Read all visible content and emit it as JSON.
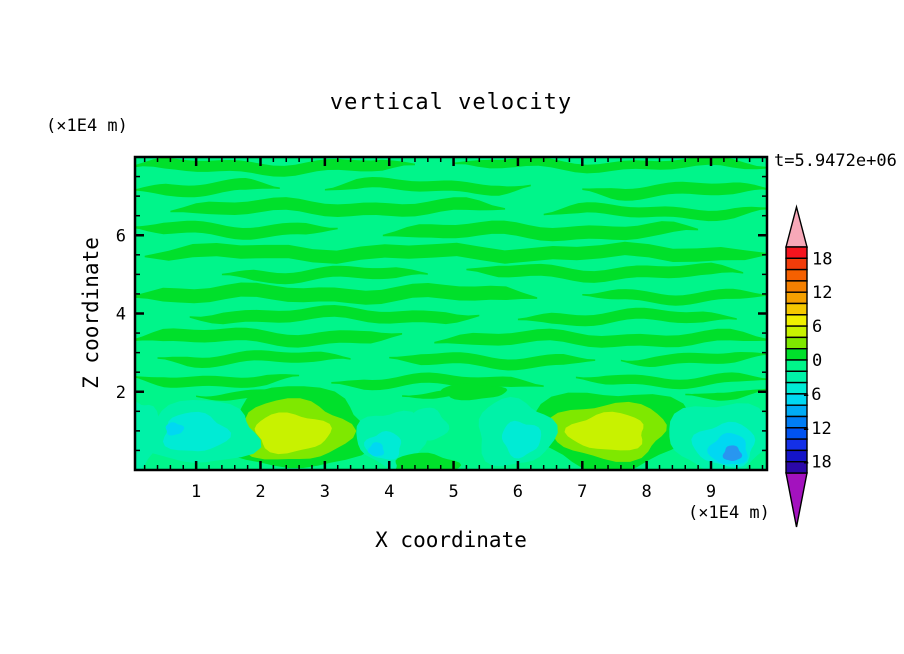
{
  "header": {
    "title": "vertical velocity",
    "timestamp": "t=5.9472e+06"
  },
  "axes": {
    "x": {
      "label": "X coordinate",
      "unit": "(×1E4 m)"
    },
    "z": {
      "label": "Z coordinate",
      "unit": "(×1E4 m)"
    }
  },
  "colorbar": {
    "labels": [
      "18",
      "12",
      "6",
      "0",
      "-6",
      "-12",
      "-18"
    ]
  },
  "chart_data": {
    "type": "heatmap",
    "subtype": "filled-contour",
    "title": "vertical velocity",
    "xlabel": "X coordinate",
    "zlabel": "Z coordinate",
    "x_unit": "(×1E4 m)",
    "z_unit": "(×1E4 m)",
    "time_annotation": "t=5.9472e+06",
    "x_range": [
      0.05,
      9.87
    ],
    "z_range": [
      0,
      8
    ],
    "x_ticks_major": [
      1,
      2,
      3,
      4,
      5,
      6,
      7,
      8,
      9
    ],
    "x_tick_minor_step": 0.2,
    "z_ticks_major": [
      2,
      4,
      6
    ],
    "z_tick_minor_step": 0.5,
    "grid": false,
    "colorbar": {
      "min": -20,
      "max": 20,
      "step": 2,
      "label_values": [
        18,
        12,
        6,
        0,
        -6,
        -12,
        -18
      ],
      "cell_colors_top_to_bottom": [
        "#F5141E",
        "#F23C0A",
        "#F56000",
        "#F58000",
        "#F5A000",
        "#F5C800",
        "#F0F000",
        "#C8F200",
        "#7FE800",
        "#00E02B",
        "#00F58A",
        "#00F2A8",
        "#00EBD5",
        "#00D8F2",
        "#00ABF5",
        "#007DF5",
        "#0053F0",
        "#1430E8",
        "#1414C8",
        "#2B08A8"
      ],
      "over_color": "#F7A8B8",
      "under_color": "#A312BE",
      "legend_position": "right"
    },
    "field": {
      "background_value_band": "-2..0",
      "background_color": "#00F58A",
      "streak_value_band": "0..2",
      "streak_color": "#00E02B",
      "streaks": [
        {
          "x0": 0.0,
          "x1": 4.4,
          "z": 7.75,
          "h": 0.28
        },
        {
          "x0": 5.0,
          "x1": 9.9,
          "z": 7.8,
          "h": 0.22
        },
        {
          "x0": 0.0,
          "x1": 2.3,
          "z": 7.2,
          "h": 0.3
        },
        {
          "x0": 3.0,
          "x1": 6.2,
          "z": 7.25,
          "h": 0.26
        },
        {
          "x0": 7.0,
          "x1": 9.9,
          "z": 7.15,
          "h": 0.3
        },
        {
          "x0": 0.6,
          "x1": 5.8,
          "z": 6.7,
          "h": 0.32
        },
        {
          "x0": 6.4,
          "x1": 9.9,
          "z": 6.6,
          "h": 0.26
        },
        {
          "x0": 0.0,
          "x1": 3.2,
          "z": 6.15,
          "h": 0.3
        },
        {
          "x0": 3.9,
          "x1": 8.8,
          "z": 6.1,
          "h": 0.34
        },
        {
          "x0": 0.2,
          "x1": 9.9,
          "z": 5.55,
          "h": 0.34
        },
        {
          "x0": 1.4,
          "x1": 4.6,
          "z": 5.0,
          "h": 0.28
        },
        {
          "x0": 5.2,
          "x1": 9.5,
          "z": 5.05,
          "h": 0.3
        },
        {
          "x0": 0.0,
          "x1": 6.3,
          "z": 4.5,
          "h": 0.36
        },
        {
          "x0": 7.0,
          "x1": 9.9,
          "z": 4.45,
          "h": 0.26
        },
        {
          "x0": 0.9,
          "x1": 5.4,
          "z": 3.95,
          "h": 0.3
        },
        {
          "x0": 6.0,
          "x1": 9.4,
          "z": 3.9,
          "h": 0.28
        },
        {
          "x0": 0.0,
          "x1": 4.2,
          "z": 3.4,
          "h": 0.32
        },
        {
          "x0": 4.7,
          "x1": 9.9,
          "z": 3.35,
          "h": 0.3
        },
        {
          "x0": 0.4,
          "x1": 3.4,
          "z": 2.85,
          "h": 0.26
        },
        {
          "x0": 4.0,
          "x1": 7.2,
          "z": 2.8,
          "h": 0.28
        },
        {
          "x0": 7.6,
          "x1": 9.9,
          "z": 2.85,
          "h": 0.26
        },
        {
          "x0": 0.0,
          "x1": 2.6,
          "z": 2.3,
          "h": 0.26
        },
        {
          "x0": 3.1,
          "x1": 6.4,
          "z": 2.25,
          "h": 0.26
        },
        {
          "x0": 6.9,
          "x1": 9.9,
          "z": 2.3,
          "h": 0.24
        },
        {
          "x0": 1.0,
          "x1": 3.0,
          "z": 1.95,
          "h": 0.2
        },
        {
          "x0": 4.2,
          "x1": 5.6,
          "z": 1.9,
          "h": 0.18
        },
        {
          "x0": 8.6,
          "x1": 9.9,
          "z": 1.95,
          "h": 0.2
        }
      ],
      "features": [
        {
          "name": "updraft-1-ring",
          "band": "0..2",
          "color": "#00E02B",
          "cx": 2.55,
          "cz": 1.05,
          "rx": 1.15,
          "rz": 1.05
        },
        {
          "name": "updraft-1-mid",
          "band": "2..4",
          "color": "#7FE800",
          "cx": 2.52,
          "cz": 1.0,
          "rx": 0.85,
          "rz": 0.78
        },
        {
          "name": "updraft-1-core",
          "band": "4..6",
          "color": "#C8F200",
          "cx": 2.48,
          "cz": 0.95,
          "rx": 0.58,
          "rz": 0.5
        },
        {
          "name": "updraft-2-ring",
          "band": "0..2",
          "color": "#00E02B",
          "cx": 7.45,
          "cz": 1.05,
          "rx": 1.25,
          "rz": 1.0
        },
        {
          "name": "updraft-2-mid",
          "band": "2..4",
          "color": "#7FE800",
          "cx": 7.42,
          "cz": 1.0,
          "rx": 0.9,
          "rz": 0.72
        },
        {
          "name": "updraft-2-core",
          "band": "4..6",
          "color": "#C8F200",
          "cx": 7.4,
          "cz": 0.97,
          "rx": 0.6,
          "rz": 0.48
        },
        {
          "name": "downdraft-1-outer",
          "band": "-4..-2",
          "color": "#00F2A8",
          "cx": 1.05,
          "cz": 0.95,
          "rx": 0.92,
          "rz": 0.8
        },
        {
          "name": "downdraft-1-inner",
          "band": "-6..-4",
          "color": "#00EBD5",
          "cx": 0.98,
          "cz": 0.95,
          "rx": 0.5,
          "rz": 0.5
        },
        {
          "name": "downdraft-1-spot",
          "band": "-8..-6",
          "color": "#00D8F2",
          "cx": 0.66,
          "cz": 1.05,
          "rx": 0.14,
          "rz": 0.16
        },
        {
          "name": "left-edge-patch",
          "band": "-4..-2",
          "color": "#00F2A8",
          "cx": 0.12,
          "cz": 0.95,
          "rx": 0.3,
          "rz": 0.85
        },
        {
          "name": "downdraft-2-outer",
          "band": "-4..-2",
          "color": "#00F2A8",
          "cx": 4.05,
          "cz": 0.8,
          "rx": 0.55,
          "rz": 0.72
        },
        {
          "name": "downdraft-2-inner",
          "band": "-6..-4",
          "color": "#00EBD5",
          "cx": 3.92,
          "cz": 0.62,
          "rx": 0.28,
          "rz": 0.35
        },
        {
          "name": "downdraft-2-spot",
          "band": "-8..-6",
          "color": "#00D8F2",
          "cx": 3.8,
          "cz": 0.52,
          "rx": 0.12,
          "rz": 0.18
        },
        {
          "name": "downdraft-3",
          "band": "-4..-2",
          "color": "#00F2A8",
          "cx": 4.6,
          "cz": 1.15,
          "rx": 0.3,
          "rz": 0.42
        },
        {
          "name": "downdraft-4-outer",
          "band": "-4..-2",
          "color": "#00F2A8",
          "cx": 5.95,
          "cz": 0.95,
          "rx": 0.6,
          "rz": 0.85
        },
        {
          "name": "downdraft-4-inner",
          "band": "-6..-4",
          "color": "#00EBD5",
          "cx": 6.05,
          "cz": 0.8,
          "rx": 0.3,
          "rz": 0.45
        },
        {
          "name": "downdraft-5-outer",
          "band": "-4..-2",
          "color": "#00F2A8",
          "cx": 9.15,
          "cz": 0.85,
          "rx": 0.8,
          "rz": 0.9
        },
        {
          "name": "downdraft-5-mid",
          "band": "-6..-4",
          "color": "#00EBD5",
          "cx": 9.22,
          "cz": 0.65,
          "rx": 0.48,
          "rz": 0.55
        },
        {
          "name": "downdraft-5-inner",
          "band": "-8..-6",
          "color": "#00D8F2",
          "cx": 9.28,
          "cz": 0.52,
          "rx": 0.3,
          "rz": 0.4
        },
        {
          "name": "downdraft-5-spot",
          "band": "-10..-8",
          "color": "#2896F0",
          "cx": 9.33,
          "cz": 0.42,
          "rx": 0.14,
          "rz": 0.2
        },
        {
          "name": "bottom-green-1",
          "band": "0..2",
          "color": "#00E02B",
          "cx": 4.55,
          "cz": 0.12,
          "rx": 0.5,
          "rz": 0.3
        },
        {
          "name": "mid-green-tuft",
          "band": "0..2",
          "color": "#00E02B",
          "cx": 5.3,
          "cz": 2.0,
          "rx": 0.5,
          "rz": 0.2
        }
      ]
    }
  }
}
